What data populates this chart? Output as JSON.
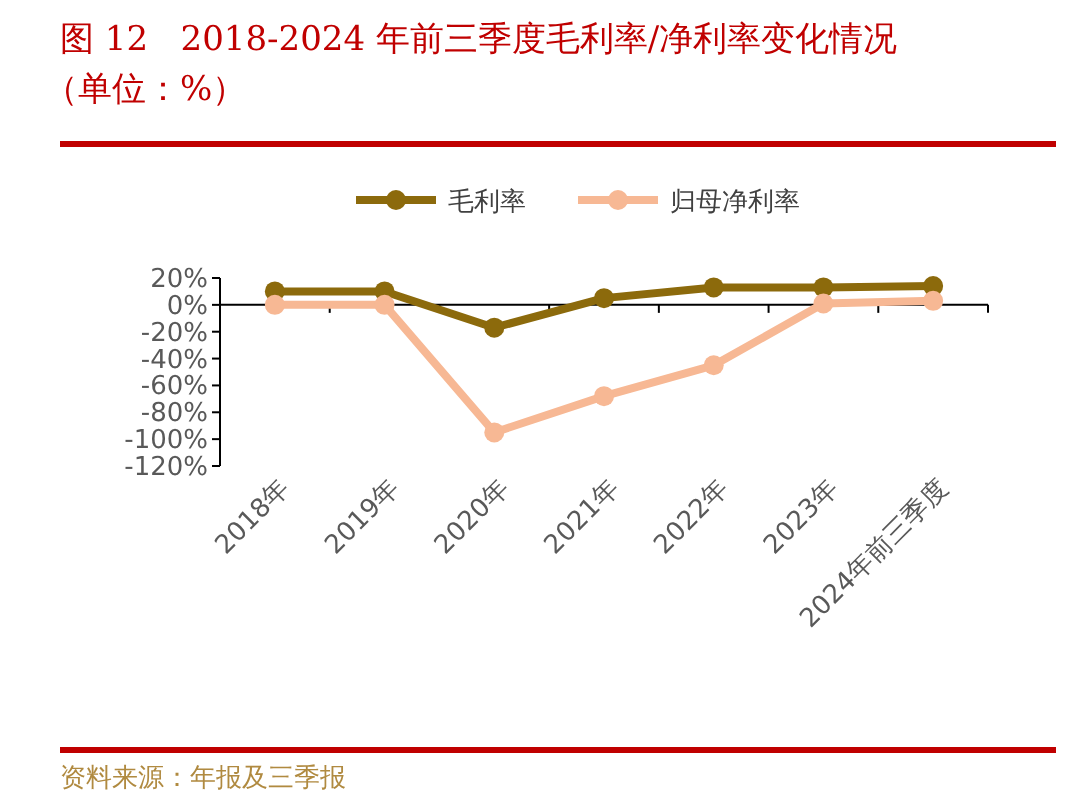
{
  "chart_data": {
    "type": "line",
    "title": "图 12   2018-2024 年前三季度毛利率/净利率变化情况",
    "subtitle": "（单位：%）",
    "categories": [
      "2018年",
      "2019年",
      "2020年",
      "2021年",
      "2022年",
      "2023年",
      "2024年前三季度"
    ],
    "series": [
      {
        "name": "毛利率",
        "color": "#8c6a0c",
        "values": [
          10,
          10,
          -17,
          5,
          13,
          13,
          14
        ]
      },
      {
        "name": "归母净利率",
        "color": "#f7b894",
        "values": [
          0,
          0,
          -95,
          -68,
          -45,
          1,
          3
        ]
      }
    ],
    "ylim": [
      -120,
      20
    ],
    "yticks": [
      {
        "value": 20,
        "label": "20%"
      },
      {
        "value": 0,
        "label": "0%"
      },
      {
        "value": -20,
        "label": "-20%"
      },
      {
        "value": -40,
        "label": "-40%"
      },
      {
        "value": -60,
        "label": "-60%"
      },
      {
        "value": -80,
        "label": "-80%"
      },
      {
        "value": -100,
        "label": "-100%"
      },
      {
        "value": -120,
        "label": "-120%"
      }
    ],
    "ref_lines": [
      {
        "axis": "y",
        "value": 0,
        "color": "#000000",
        "line_style": "solid"
      }
    ],
    "grid": false,
    "legend": "top",
    "marker": "circle",
    "line_style": "solid",
    "annotations": [
      "资料来源：年报及三季报"
    ]
  }
}
